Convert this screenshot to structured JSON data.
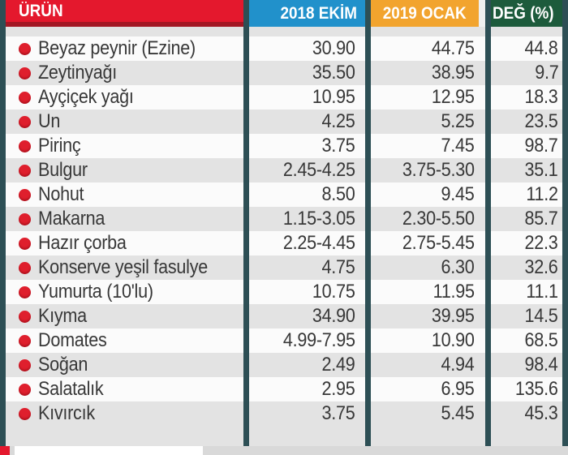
{
  "colors": {
    "separator": "#2d4f55",
    "header_urun_bg": "#e4182d",
    "header_urun_bottom": "#a31724",
    "header_2018_bg": "#2191cb",
    "header_2019_bg": "#f2a42e",
    "header_deg_bg": "#1d5b3c",
    "row_stripe": "#e3e3e3",
    "row_white": "#fbfbfb",
    "text": "#383838",
    "bullet": "#df1f2d",
    "page_bg": "#d9d9d9"
  },
  "header": {
    "urun": "ÜRÜN",
    "oct2018": "2018 EKİM",
    "jan2019": "2019 OCAK",
    "change": "DEĞ (%)"
  },
  "rows": [
    {
      "product": "Beyaz peynir (Ezine)",
      "oct2018": "30.90",
      "jan2019": "44.75",
      "change": "44.8"
    },
    {
      "product": "Zeytinyağı",
      "oct2018": "35.50",
      "jan2019": "38.95",
      "change": "9.7"
    },
    {
      "product": "Ayçiçek yağı",
      "oct2018": "10.95",
      "jan2019": "12.95",
      "change": "18.3"
    },
    {
      "product": "Un",
      "oct2018": "4.25",
      "jan2019": "5.25",
      "change": "23.5"
    },
    {
      "product": "Pirinç",
      "oct2018": "3.75",
      "jan2019": "7.45",
      "change": "98.7"
    },
    {
      "product": "Bulgur",
      "oct2018": "2.45-4.25",
      "jan2019": "3.75-5.30",
      "change": "35.1"
    },
    {
      "product": "Nohut",
      "oct2018": "8.50",
      "jan2019": "9.45",
      "change": "11.2"
    },
    {
      "product": "Makarna",
      "oct2018": "1.15-3.05",
      "jan2019": "2.30-5.50",
      "change": "85.7"
    },
    {
      "product": "Hazır çorba",
      "oct2018": "2.25-4.45",
      "jan2019": "2.75-5.45",
      "change": "22.3"
    },
    {
      "product": "Konserve yeşil fasulye",
      "oct2018": "4.75",
      "jan2019": "6.30",
      "change": "32.6"
    },
    {
      "product": "Yumurta (10'lu)",
      "oct2018": "10.75",
      "jan2019": "11.95",
      "change": "11.1"
    },
    {
      "product": "Kıyma",
      "oct2018": "34.90",
      "jan2019": "39.95",
      "change": "14.5"
    },
    {
      "product": "Domates",
      "oct2018": "4.99-7.95",
      "jan2019": "10.90",
      "change": "68.5"
    },
    {
      "product": "Soğan",
      "oct2018": "2.49",
      "jan2019": "4.94",
      "change": "98.4"
    },
    {
      "product": "Salatalık",
      "oct2018": "2.95",
      "jan2019": "6.95",
      "change": "135.6"
    },
    {
      "product": "Kıvırcık",
      "oct2018": "3.75",
      "jan2019": "5.45",
      "change": "45.3"
    }
  ],
  "chart_data": {
    "type": "table",
    "columns": [
      "ÜRÜN",
      "2018 EKİM",
      "2019 OCAK",
      "DEĞ (%)"
    ],
    "rows": [
      [
        "Beyaz peynir (Ezine)",
        "30.90",
        "44.75",
        44.8
      ],
      [
        "Zeytinyağı",
        "35.50",
        "38.95",
        9.7
      ],
      [
        "Ayçiçek yağı",
        "10.95",
        "12.95",
        18.3
      ],
      [
        "Un",
        "4.25",
        "5.25",
        23.5
      ],
      [
        "Pirinç",
        "3.75",
        "7.45",
        98.7
      ],
      [
        "Bulgur",
        "2.45-4.25",
        "3.75-5.30",
        35.1
      ],
      [
        "Nohut",
        "8.50",
        "9.45",
        11.2
      ],
      [
        "Makarna",
        "1.15-3.05",
        "2.30-5.50",
        85.7
      ],
      [
        "Hazır çorba",
        "2.25-4.45",
        "2.75-5.45",
        22.3
      ],
      [
        "Konserve yeşil fasulye",
        "4.75",
        "6.30",
        32.6
      ],
      [
        "Yumurta (10'lu)",
        "10.75",
        "11.95",
        11.1
      ],
      [
        "Kıyma",
        "34.90",
        "39.95",
        14.5
      ],
      [
        "Domates",
        "4.99-7.95",
        "10.90",
        68.5
      ],
      [
        "Soğan",
        "2.49",
        "4.94",
        98.4
      ],
      [
        "Salatalık",
        "2.95",
        "6.95",
        135.6
      ],
      [
        "Kıvırcık",
        "3.75",
        "5.45",
        45.3
      ]
    ],
    "notes": "Newspaper-style grocery price comparison table; striped rows; red bullet before each product name"
  }
}
